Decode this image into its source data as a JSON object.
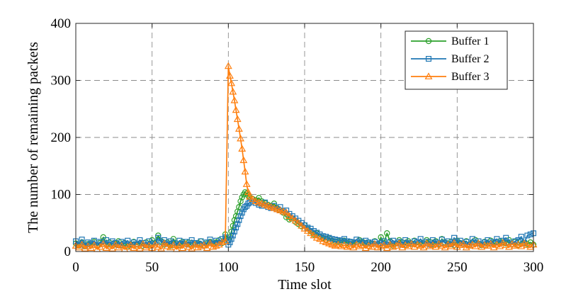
{
  "chart_data": {
    "type": "line",
    "title": "",
    "xlabel": "Time slot",
    "ylabel": "The number of remaining packets",
    "xlim": [
      0,
      300
    ],
    "ylim": [
      0,
      400
    ],
    "xticks": [
      "0",
      "50",
      "100",
      "150",
      "200",
      "250",
      "300"
    ],
    "yticks": [
      "0",
      "100",
      "200",
      "300",
      "400"
    ],
    "grid": true,
    "legend_position": "top-right",
    "series": [
      {
        "name": "Buffer 1",
        "color": "#2ca02c",
        "marker": "circle",
        "x": [
          0,
          2,
          4,
          6,
          8,
          10,
          12,
          14,
          16,
          18,
          20,
          22,
          24,
          26,
          28,
          30,
          32,
          34,
          36,
          38,
          40,
          42,
          44,
          46,
          48,
          50,
          52,
          54,
          56,
          58,
          60,
          62,
          64,
          66,
          68,
          70,
          72,
          74,
          76,
          78,
          80,
          82,
          84,
          86,
          88,
          90,
          92,
          94,
          96,
          98,
          100,
          101,
          102,
          103,
          104,
          105,
          106,
          107,
          108,
          109,
          110,
          111,
          112,
          113,
          114,
          116,
          118,
          120,
          122,
          124,
          126,
          128,
          130,
          132,
          134,
          136,
          138,
          140,
          142,
          144,
          146,
          148,
          150,
          152,
          154,
          156,
          158,
          160,
          162,
          164,
          166,
          168,
          170,
          172,
          174,
          176,
          178,
          180,
          182,
          184,
          186,
          188,
          190,
          192,
          194,
          196,
          198,
          200,
          202,
          204,
          206,
          208,
          210,
          212,
          214,
          216,
          218,
          220,
          222,
          224,
          226,
          228,
          230,
          232,
          234,
          236,
          238,
          240,
          242,
          244,
          246,
          248,
          250,
          252,
          254,
          256,
          258,
          260,
          262,
          264,
          266,
          268,
          270,
          272,
          274,
          276,
          278,
          280,
          282,
          284,
          286,
          288,
          290,
          292,
          294,
          296,
          298,
          300
        ],
        "values": [
          14,
          10,
          16,
          9,
          13,
          11,
          17,
          10,
          15,
          25,
          12,
          16,
          10,
          14,
          18,
          11,
          15,
          9,
          13,
          17,
          12,
          14,
          10,
          16,
          12,
          20,
          15,
          28,
          18,
          12,
          16,
          10,
          22,
          14,
          11,
          17,
          13,
          16,
          10,
          12,
          15,
          18,
          11,
          14,
          17,
          13,
          16,
          20,
          15,
          30,
          20,
          25,
          35,
          45,
          55,
          62,
          70,
          78,
          88,
          95,
          100,
          104,
          102,
          98,
          95,
          92,
          90,
          94,
          88,
          85,
          82,
          80,
          84,
          76,
          72,
          68,
          60,
          56,
          58,
          52,
          48,
          44,
          46,
          40,
          35,
          30,
          32,
          26,
          24,
          21,
          23,
          19,
          17,
          18,
          16,
          19,
          15,
          17,
          14,
          16,
          20,
          17,
          14,
          16,
          13,
          18,
          12,
          25,
          15,
          32,
          18,
          10,
          14,
          20,
          16,
          12,
          18,
          14,
          19,
          12,
          16,
          14,
          20,
          17,
          13,
          18,
          12,
          22,
          16,
          14,
          17,
          11,
          19,
          15,
          13,
          18,
          12,
          16,
          20,
          14,
          11,
          17,
          13,
          19,
          15,
          12,
          18,
          16,
          14,
          20,
          13,
          17,
          11,
          18,
          15,
          13,
          16,
          12
        ]
      },
      {
        "name": "Buffer 2",
        "color": "#1f77b4",
        "marker": "square",
        "x": [
          0,
          2,
          4,
          6,
          8,
          10,
          12,
          14,
          16,
          18,
          20,
          22,
          24,
          26,
          28,
          30,
          32,
          34,
          36,
          38,
          40,
          42,
          44,
          46,
          48,
          50,
          52,
          54,
          56,
          58,
          60,
          62,
          64,
          66,
          68,
          70,
          72,
          74,
          76,
          78,
          80,
          82,
          84,
          86,
          88,
          90,
          92,
          94,
          96,
          98,
          100,
          101,
          102,
          103,
          104,
          105,
          106,
          107,
          108,
          109,
          110,
          111,
          112,
          113,
          114,
          116,
          118,
          120,
          122,
          124,
          126,
          128,
          130,
          132,
          134,
          136,
          138,
          140,
          142,
          144,
          146,
          148,
          150,
          152,
          154,
          156,
          158,
          160,
          162,
          164,
          166,
          168,
          170,
          172,
          174,
          176,
          178,
          180,
          182,
          184,
          186,
          188,
          190,
          192,
          194,
          196,
          198,
          200,
          202,
          204,
          206,
          208,
          210,
          212,
          214,
          216,
          218,
          220,
          222,
          224,
          226,
          228,
          230,
          232,
          234,
          236,
          238,
          240,
          242,
          244,
          246,
          248,
          250,
          252,
          254,
          256,
          258,
          260,
          262,
          264,
          266,
          268,
          270,
          272,
          274,
          276,
          278,
          280,
          282,
          284,
          286,
          288,
          290,
          292,
          294,
          296,
          298,
          300
        ],
        "values": [
          18,
          12,
          21,
          10,
          16,
          14,
          19,
          11,
          17,
          13,
          20,
          12,
          18,
          15,
          11,
          17,
          14,
          19,
          12,
          16,
          13,
          20,
          15,
          11,
          18,
          14,
          12,
          24,
          16,
          20,
          13,
          18,
          15,
          11,
          19,
          14,
          17,
          12,
          20,
          15,
          13,
          18,
          11,
          16,
          21,
          14,
          19,
          15,
          22,
          25,
          12,
          16,
          22,
          28,
          35,
          42,
          48,
          55,
          62,
          68,
          74,
          78,
          80,
          84,
          86,
          88,
          85,
          82,
          80,
          86,
          78,
          76,
          80,
          74,
          78,
          70,
          72,
          66,
          62,
          58,
          54,
          50,
          46,
          42,
          40,
          36,
          33,
          30,
          27,
          26,
          24,
          22,
          21,
          20,
          19,
          22,
          18,
          17,
          16,
          21,
          18,
          15,
          19,
          16,
          14,
          17,
          13,
          15,
          18,
          12,
          16,
          19,
          14,
          17,
          12,
          20,
          15,
          13,
          18,
          16,
          22,
          14,
          17,
          12,
          20,
          16,
          14,
          21,
          15,
          18,
          13,
          24,
          16,
          19,
          14,
          17,
          12,
          22,
          15,
          18,
          13,
          16,
          20,
          14,
          17,
          22,
          15,
          19,
          24,
          16,
          13,
          18,
          20,
          26,
          15,
          28,
          30,
          32
        ]
      },
      {
        "name": "Buffer 3",
        "color": "#ff7f0e",
        "marker": "triangle",
        "x": [
          0,
          2,
          4,
          6,
          8,
          10,
          12,
          14,
          16,
          18,
          20,
          22,
          24,
          26,
          28,
          30,
          32,
          34,
          36,
          38,
          40,
          42,
          44,
          46,
          48,
          50,
          52,
          54,
          56,
          58,
          60,
          62,
          64,
          66,
          68,
          70,
          72,
          74,
          76,
          78,
          80,
          82,
          84,
          86,
          88,
          90,
          92,
          94,
          96,
          98,
          100,
          101,
          102,
          103,
          104,
          105,
          106,
          107,
          108,
          109,
          110,
          111,
          112,
          113,
          114,
          116,
          118,
          120,
          122,
          124,
          126,
          128,
          130,
          132,
          134,
          136,
          138,
          140,
          142,
          144,
          146,
          148,
          150,
          152,
          154,
          156,
          158,
          160,
          162,
          164,
          166,
          168,
          170,
          172,
          174,
          176,
          178,
          180,
          182,
          184,
          186,
          188,
          190,
          192,
          194,
          196,
          198,
          200,
          202,
          204,
          206,
          208,
          210,
          212,
          214,
          216,
          218,
          220,
          222,
          224,
          226,
          228,
          230,
          232,
          234,
          236,
          238,
          240,
          242,
          244,
          246,
          248,
          250,
          252,
          254,
          256,
          258,
          260,
          262,
          264,
          266,
          268,
          270,
          272,
          274,
          276,
          278,
          280,
          282,
          284,
          286,
          288,
          290,
          292,
          294,
          296,
          298,
          300
        ],
        "values": [
          10,
          7,
          12,
          5,
          9,
          6,
          11,
          4,
          8,
          13,
          6,
          9,
          5,
          12,
          7,
          10,
          4,
          8,
          11,
          6,
          9,
          5,
          13,
          7,
          10,
          6,
          12,
          8,
          5,
          14,
          9,
          7,
          11,
          4,
          10,
          6,
          13,
          8,
          5,
          12,
          7,
          9,
          11,
          6,
          14,
          8,
          10,
          12,
          16,
          18,
          325,
          308,
          295,
          280,
          265,
          248,
          232,
          215,
          198,
          180,
          160,
          140,
          118,
          104,
          96,
          92,
          88,
          86,
          84,
          82,
          80,
          78,
          76,
          74,
          72,
          70,
          68,
          62,
          58,
          54,
          50,
          45,
          40,
          36,
          32,
          28,
          24,
          22,
          18,
          16,
          14,
          12,
          10,
          12,
          9,
          11,
          8,
          10,
          7,
          12,
          9,
          11,
          6,
          10,
          8,
          13,
          7,
          9,
          11,
          6,
          12,
          8,
          10,
          14,
          7,
          11,
          9,
          13,
          8,
          12,
          10,
          7,
          14,
          9,
          11,
          8,
          13,
          10,
          7,
          12,
          9,
          15,
          8,
          11,
          13,
          7,
          10,
          12,
          9,
          14,
          8,
          11,
          10,
          13,
          7,
          12,
          9,
          15,
          11,
          8,
          13,
          10,
          12,
          9,
          14,
          11,
          8,
          12
        ]
      }
    ]
  }
}
